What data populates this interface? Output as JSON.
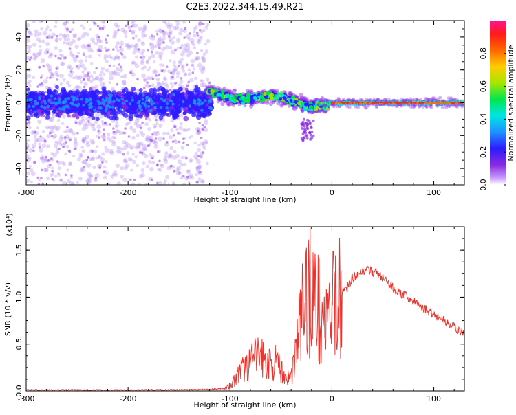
{
  "title": "C2E3.2022.344.15.49.R21",
  "colors": {
    "snr_line": "#e8352f",
    "axis": "#000000",
    "colormap": [
      "#8a2be2",
      "#2d1bff",
      "#1e90ff",
      "#00e5e5",
      "#00e64d",
      "#a6e600",
      "#ffcc00",
      "#ff6600",
      "#ff1a1a",
      "#ff1493"
    ]
  },
  "chart_data": [
    {
      "type": "heatmap",
      "title": "C2E3.2022.344.15.49.R21",
      "xlabel": "Height of straight line (km)",
      "ylabel": "Frequency (Hz)",
      "xlim": [
        -300,
        130
      ],
      "ylim": [
        -50,
        50
      ],
      "xticks": [
        -300,
        -200,
        -100,
        0,
        100
      ],
      "yticks": [
        -40,
        -20,
        0,
        20,
        40
      ],
      "xtick_labels": [
        "-300",
        "-200",
        "-100",
        "0",
        "100"
      ],
      "ytick_labels": [
        "-40",
        "-20",
        "0",
        "20",
        "40"
      ],
      "grid": false,
      "colorbar": {
        "label": "Normalized spectral amplitude",
        "range": [
          0,
          1
        ],
        "ticks": [
          0.0,
          0.2,
          0.4,
          0.6,
          0.8
        ],
        "tick_labels": [
          "0.0",
          "0.2",
          "0.4",
          "0.6",
          "0.8"
        ]
      }
    },
    {
      "type": "line",
      "xlabel": "Height of straight line (km)",
      "ylabel": "SNR (10 * v/v)",
      "y_multiplier_label": "(x10⁴)",
      "xlim": [
        -300,
        130
      ],
      "ylim": [
        0,
        1.75
      ],
      "xticks": [
        -300,
        -200,
        -100,
        0,
        100
      ],
      "yticks": [
        0.0,
        0.5,
        1.0,
        1.5
      ],
      "xtick_labels": [
        "-300",
        "-200",
        "-100",
        "0",
        "100"
      ],
      "ytick_labels": [
        "0.0",
        "0.5",
        "1.0",
        "1.5"
      ],
      "grid": false,
      "series": [
        {
          "x": [
            -300,
            -200,
            -120,
            -105,
            -100,
            -95,
            -90,
            -85,
            -80,
            -75,
            -70,
            -65,
            -60,
            -55,
            -50,
            -45,
            -40,
            -35,
            -30,
            -25,
            -20,
            -15,
            -10,
            -5,
            0,
            5,
            10,
            15,
            20,
            25,
            30,
            35,
            40,
            45,
            50,
            55,
            60,
            65,
            70,
            75,
            80,
            85,
            90,
            95,
            100,
            105,
            110,
            115,
            120,
            125,
            130
          ],
          "values": [
            0.01,
            0.01,
            0.015,
            0.03,
            0.06,
            0.12,
            0.2,
            0.25,
            0.3,
            0.35,
            0.4,
            0.3,
            0.28,
            0.3,
            0.22,
            0.14,
            0.15,
            0.45,
            0.8,
            1.0,
            1.15,
            0.9,
            0.8,
            0.7,
            0.85,
            1.0,
            1.05,
            1.1,
            1.2,
            1.25,
            1.28,
            1.28,
            1.27,
            1.25,
            1.2,
            1.15,
            1.1,
            1.05,
            1.02,
            1.0,
            0.95,
            0.92,
            0.88,
            0.85,
            0.82,
            0.78,
            0.75,
            0.72,
            0.68,
            0.64,
            0.6
          ]
        }
      ]
    }
  ]
}
